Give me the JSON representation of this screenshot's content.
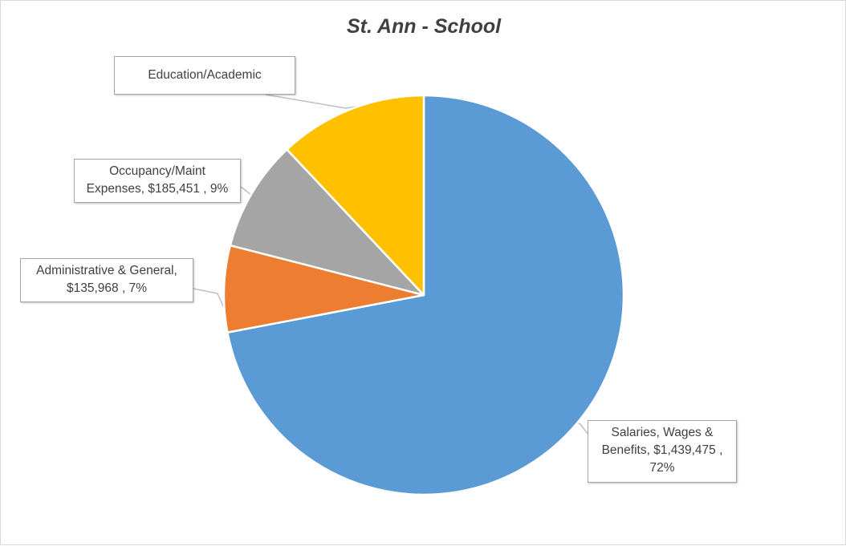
{
  "chart_data": {
    "type": "pie",
    "title": "St. Ann - School",
    "slices": [
      {
        "name": "Salaries, Wages & Benefits",
        "value": 1439475,
        "percent": 72,
        "color": "#5b9bd5",
        "label_lines": [
          "Salaries, Wages &",
          "Benefits,  $1,439,475 ,",
          "72%"
        ]
      },
      {
        "name": "Administrative & General",
        "value": 135968,
        "percent": 7,
        "color": "#ed7d31",
        "label_lines": [
          "Administrative & General,",
          "$135,968 , 7%"
        ]
      },
      {
        "name": "Occupancy/Maint Expenses",
        "value": 185451,
        "percent": 9,
        "color": "#a5a5a5",
        "label_lines": [
          "Occupancy/Maint",
          "Expenses,  $185,451 , 9%"
        ]
      },
      {
        "name": "Education/Academic",
        "percent": 12,
        "color": "#ffc000",
        "label_lines": [
          "Education/Academic"
        ]
      }
    ],
    "start_angle_deg": 0,
    "direction": "clockwise",
    "legend": "none"
  }
}
